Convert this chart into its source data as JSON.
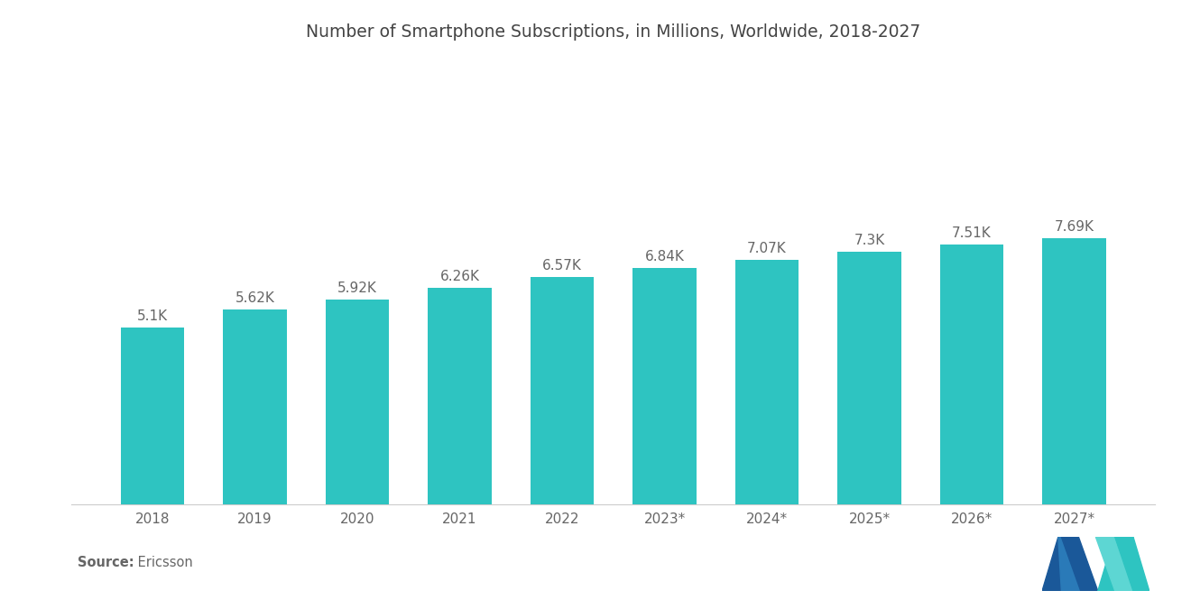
{
  "title": "Number of Smartphone Subscriptions, in Millions, Worldwide, 2018-2027",
  "categories": [
    "2018",
    "2019",
    "2020",
    "2021",
    "2022",
    "2023*",
    "2024*",
    "2025*",
    "2026*",
    "2027*"
  ],
  "values": [
    5100,
    5620,
    5920,
    6260,
    6570,
    6840,
    7070,
    7300,
    7510,
    7690
  ],
  "labels": [
    "5.1K",
    "5.62K",
    "5.92K",
    "6.26K",
    "6.57K",
    "6.84K",
    "7.07K",
    "7.3K",
    "7.51K",
    "7.69K"
  ],
  "bar_color": "#2EC4C1",
  "background_color": "#ffffff",
  "title_fontsize": 13.5,
  "label_fontsize": 11,
  "tick_fontsize": 11,
  "ylim": [
    0,
    12500
  ],
  "text_color": "#666666",
  "title_color": "#444444",
  "logo_dark": "#1a5899",
  "logo_teal": "#2ec4c1",
  "logo_mid": "#2a7ab8"
}
